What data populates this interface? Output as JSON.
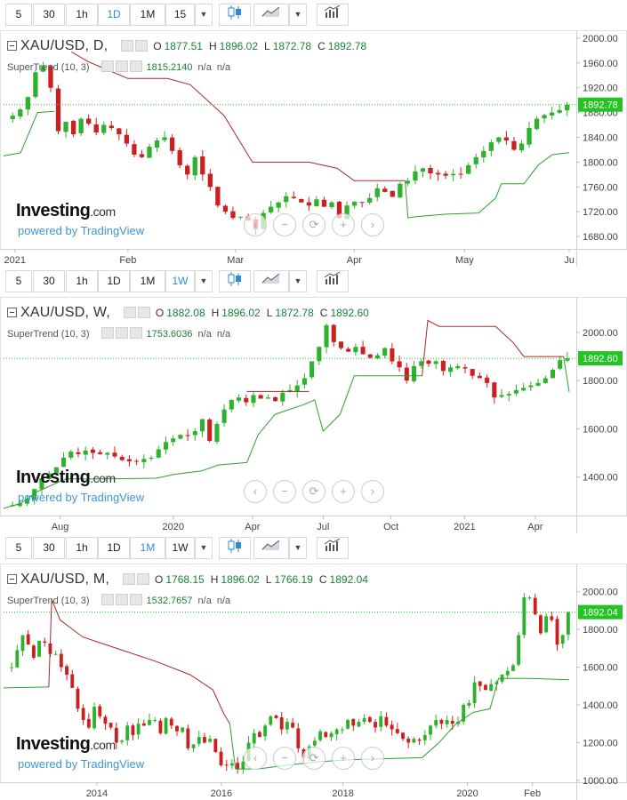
{
  "toolbars": [
    {
      "buttons": [
        "5",
        "30",
        "1h",
        "1D",
        "1M",
        "15"
      ],
      "active": "1D"
    },
    {
      "buttons": [
        "5",
        "30",
        "1h",
        "1D",
        "1M",
        "1W"
      ],
      "active": "1W"
    },
    {
      "buttons": [
        "5",
        "30",
        "1h",
        "1D",
        "1M",
        "1W"
      ],
      "active": "1M"
    }
  ],
  "nav_icons": [
    "scroll-left-icon",
    "zoom-out-icon",
    "reset-icon",
    "zoom-in-icon",
    "scroll-right-icon"
  ],
  "nav_glyphs": [
    "‹",
    "−",
    "⟳",
    "+",
    "›"
  ],
  "logo": {
    "name": "Investing",
    "suffix": ".com",
    "powered": "powered by TradingView"
  },
  "colors": {
    "up": "#2db22d",
    "down": "#cc1f1f",
    "supertrend_down": "#a52a2a",
    "supertrend_up": "#2aa02a",
    "last_price": "#22c322"
  },
  "panels": [
    {
      "symbol": "XAU/USD, D,",
      "ohlc": {
        "o_label": "O",
        "o": "1877.51",
        "h_label": "H",
        "h": "1896.02",
        "l_label": "L",
        "l": "1872.78",
        "c_label": "C",
        "c": "1892.78"
      },
      "indicator": {
        "label": "SuperTrend (10, 3)",
        "value": "1815.2140",
        "na1": "n/a",
        "na2": "n/a"
      },
      "last_price_label": "1892.78"
    },
    {
      "symbol": "XAU/USD, W,",
      "ohlc": {
        "o_label": "O",
        "o": "1882.08",
        "h_label": "H",
        "h": "1896.02",
        "l_label": "L",
        "l": "1872.78",
        "c_label": "C",
        "c": "1892.60"
      },
      "indicator": {
        "label": "SuperTrend (10, 3)",
        "value": "1753.6036",
        "na1": "n/a",
        "na2": "n/a"
      },
      "last_price_label": "1892.60"
    },
    {
      "symbol": "XAU/USD, M,",
      "ohlc": {
        "o_label": "O",
        "o": "1768.15",
        "h_label": "H",
        "h": "1896.02",
        "l_label": "L",
        "l": "1766.19",
        "c_label": "C",
        "c": "1892.04"
      },
      "indicator": {
        "label": "SuperTrend (10, 3)",
        "value": "1532.7657",
        "na1": "n/a",
        "na2": "n/a"
      },
      "last_price_label": "1892.04"
    }
  ],
  "chart_data": [
    {
      "type": "candlestick",
      "timeframe": "D",
      "ylim": [
        1660,
        2010
      ],
      "y_ticks": [
        "2000.00",
        "1960.00",
        "1920.00",
        "1880.00",
        "1840.00",
        "1800.00",
        "1760.00",
        "1720.00",
        "1680.00"
      ],
      "y_tick_values": [
        2000,
        1960,
        1920,
        1880,
        1840,
        1800,
        1760,
        1720,
        1680
      ],
      "x_ticks": [
        {
          "label": "2021",
          "t": 0.02
        },
        {
          "label": "Feb",
          "t": 0.22
        },
        {
          "label": "Mar",
          "t": 0.41
        },
        {
          "label": "Apr",
          "t": 0.62
        },
        {
          "label": "May",
          "t": 0.815
        },
        {
          "label": "Ju",
          "t": 1.0
        }
      ],
      "last_close": 1892.78,
      "close_path": [
        1875,
        1885,
        1905,
        1945,
        1955,
        1920,
        1850,
        1865,
        1845,
        1870,
        1862,
        1848,
        1860,
        1855,
        1845,
        1830,
        1812,
        1808,
        1825,
        1835,
        1840,
        1818,
        1795,
        1780,
        1808,
        1780,
        1760,
        1730,
        1720,
        1710,
        1712,
        1706,
        1692,
        1718,
        1728,
        1735,
        1745,
        1742,
        1735,
        1730,
        1740,
        1728,
        1735,
        1710,
        1730,
        1736,
        1735,
        1742,
        1758,
        1752,
        1744,
        1765,
        1770,
        1785,
        1790,
        1782,
        1780,
        1778,
        1781,
        1780,
        1795,
        1808,
        1818,
        1832,
        1840,
        1835,
        1820,
        1830,
        1855,
        1870,
        1876,
        1880,
        1884,
        1892.78
      ],
      "supertrend": [
        {
          "segment": "down",
          "points": [
            [
              0.12,
              1978
            ],
            [
              0.15,
              1962
            ],
            [
              0.22,
              1935
            ],
            [
              0.29,
              1935
            ],
            [
              0.33,
              1925
            ],
            [
              0.36,
              1900
            ],
            [
              0.39,
              1875
            ],
            [
              0.44,
              1800
            ],
            [
              0.54,
              1800
            ],
            [
              0.59,
              1790
            ],
            [
              0.62,
              1770
            ],
            [
              0.71,
              1770
            ]
          ]
        },
        {
          "segment": "up",
          "points": [
            [
              0.0,
              1810
            ],
            [
              0.03,
              1815
            ],
            [
              0.06,
              1880
            ],
            [
              0.09,
              1882
            ]
          ]
        },
        {
          "segment": "up",
          "points": [
            [
              0.71,
              1770
            ],
            [
              0.715,
              1710
            ],
            [
              0.73,
              1712
            ],
            [
              0.78,
              1716
            ],
            [
              0.84,
              1718
            ],
            [
              0.87,
              1742
            ],
            [
              0.88,
              1765
            ],
            [
              0.92,
              1765
            ],
            [
              0.945,
              1795
            ],
            [
              0.97,
              1812
            ],
            [
              1.0,
              1815.2
            ]
          ]
        }
      ]
    },
    {
      "type": "candlestick",
      "timeframe": "W",
      "ylim": [
        1240,
        2140
      ],
      "y_ticks": [
        "2000.00",
        "1800.00",
        "1600.00",
        "1400.00"
      ],
      "y_tick_values": [
        2000,
        1800,
        1600,
        1400
      ],
      "x_ticks": [
        {
          "label": "Aug",
          "t": 0.1
        },
        {
          "label": "2020",
          "t": 0.3
        },
        {
          "label": "Apr",
          "t": 0.44
        },
        {
          "label": "Jul",
          "t": 0.565
        },
        {
          "label": "Oct",
          "t": 0.685
        },
        {
          "label": "2021",
          "t": 0.815
        },
        {
          "label": "Apr",
          "t": 0.94
        }
      ],
      "last_close": 1892.6,
      "close_path": [
        1283,
        1290,
        1310,
        1350,
        1395,
        1415,
        1440,
        1480,
        1505,
        1495,
        1510,
        1500,
        1495,
        1500,
        1485,
        1470,
        1465,
        1465,
        1475,
        1480,
        1515,
        1545,
        1560,
        1575,
        1570,
        1590,
        1640,
        1550,
        1620,
        1680,
        1720,
        1730,
        1710,
        1740,
        1725,
        1730,
        1715,
        1750,
        1760,
        1780,
        1810,
        1880,
        1940,
        2030,
        1960,
        1935,
        1920,
        1940,
        1910,
        1895,
        1905,
        1935,
        1880,
        1855,
        1800,
        1860,
        1880,
        1870,
        1880,
        1840,
        1855,
        1860,
        1850,
        1820,
        1810,
        1790,
        1730,
        1740,
        1745,
        1760,
        1770,
        1780,
        1790,
        1810,
        1845,
        1885,
        1892.6
      ],
      "supertrend": [
        {
          "segment": "up",
          "points": [
            [
              0.0,
              1270
            ],
            [
              0.03,
              1290
            ],
            [
              0.06,
              1340
            ],
            [
              0.11,
              1392
            ],
            [
              0.17,
              1392
            ],
            [
              0.27,
              1395
            ],
            [
              0.3,
              1410
            ],
            [
              0.35,
              1425
            ],
            [
              0.38,
              1450
            ],
            [
              0.43,
              1460
            ],
            [
              0.45,
              1575
            ],
            [
              0.48,
              1660
            ],
            [
              0.53,
              1700
            ],
            [
              0.55,
              1720
            ],
            [
              0.565,
              1590
            ],
            [
              0.595,
              1660
            ],
            [
              0.62,
              1820
            ],
            [
              0.74,
              1820
            ],
            [
              0.74,
              1820
            ]
          ]
        },
        {
          "segment": "down",
          "points": [
            [
              0.43,
              1755
            ],
            [
              0.535,
              1755
            ],
            [
              0.54,
              1755
            ]
          ]
        },
        {
          "segment": "down",
          "points": [
            [
              0.74,
              1820
            ],
            [
              0.75,
              2050
            ],
            [
              0.77,
              2025
            ],
            [
              0.87,
              2025
            ],
            [
              0.9,
              1960
            ],
            [
              0.92,
              1900
            ],
            [
              0.99,
              1900
            ]
          ]
        },
        {
          "segment": "up",
          "points": [
            [
              0.99,
              1900
            ],
            [
              1.0,
              1753.6
            ]
          ]
        }
      ]
    },
    {
      "type": "candlestick",
      "timeframe": "M",
      "ylim": [
        990,
        2140
      ],
      "y_ticks": [
        "2000.00",
        "1800.00",
        "1600.00",
        "1400.00",
        "1200.00",
        "1000.00"
      ],
      "y_tick_values": [
        2000,
        1800,
        1600,
        1400,
        1200,
        1000
      ],
      "x_ticks": [
        {
          "label": "2014",
          "t": 0.165
        },
        {
          "label": "2016",
          "t": 0.385
        },
        {
          "label": "2018",
          "t": 0.6
        },
        {
          "label": "2020",
          "t": 0.82
        },
        {
          "label": "Feb",
          "t": 0.935
        }
      ],
      "last_close": 1892.04,
      "close_path": [
        1600,
        1690,
        1770,
        1720,
        1650,
        1740,
        1730,
        1670,
        1670,
        1600,
        1560,
        1490,
        1380,
        1320,
        1280,
        1390,
        1340,
        1300,
        1280,
        1200,
        1210,
        1290,
        1240,
        1300,
        1290,
        1320,
        1320,
        1250,
        1330,
        1290,
        1260,
        1280,
        1170,
        1190,
        1230,
        1200,
        1220,
        1150,
        1080,
        1080,
        1090,
        1060,
        1100,
        1200,
        1250,
        1230,
        1290,
        1340,
        1330,
        1270,
        1310,
        1280,
        1170,
        1120,
        1180,
        1210,
        1260,
        1230,
        1250,
        1270,
        1270,
        1320,
        1290,
        1310,
        1330,
        1310,
        1280,
        1340,
        1290,
        1270,
        1250,
        1220,
        1200,
        1220,
        1210,
        1240,
        1290,
        1320,
        1300,
        1320,
        1300,
        1310,
        1400,
        1410,
        1520,
        1500,
        1480,
        1510,
        1520,
        1560,
        1580,
        1610,
        1770,
        1970,
        1970,
        1880,
        1780,
        1870,
        1850,
        1720,
        1770,
        1892.04
      ],
      "supertrend": [
        {
          "segment": "up",
          "points": [
            [
              0.0,
              1490
            ],
            [
              0.08,
              1495
            ]
          ]
        },
        {
          "segment": "down",
          "points": [
            [
              0.08,
              1495
            ],
            [
              0.085,
              1960
            ],
            [
              0.1,
              1850
            ],
            [
              0.14,
              1760
            ],
            [
              0.2,
              1700
            ],
            [
              0.27,
              1630
            ],
            [
              0.33,
              1560
            ],
            [
              0.37,
              1480
            ],
            [
              0.39,
              1350
            ],
            [
              0.4,
              1300
            ]
          ]
        },
        {
          "segment": "up",
          "points": [
            [
              0.4,
              1300
            ],
            [
              0.41,
              1060
            ],
            [
              0.45,
              1060
            ],
            [
              0.5,
              1080
            ],
            [
              0.56,
              1100
            ],
            [
              0.62,
              1110
            ],
            [
              0.74,
              1120
            ],
            [
              0.77,
              1200
            ],
            [
              0.8,
              1300
            ],
            [
              0.83,
              1360
            ],
            [
              0.86,
              1380
            ],
            [
              0.875,
              1540
            ],
            [
              0.93,
              1540
            ],
            [
              1.0,
              1532.77
            ]
          ]
        }
      ]
    }
  ]
}
